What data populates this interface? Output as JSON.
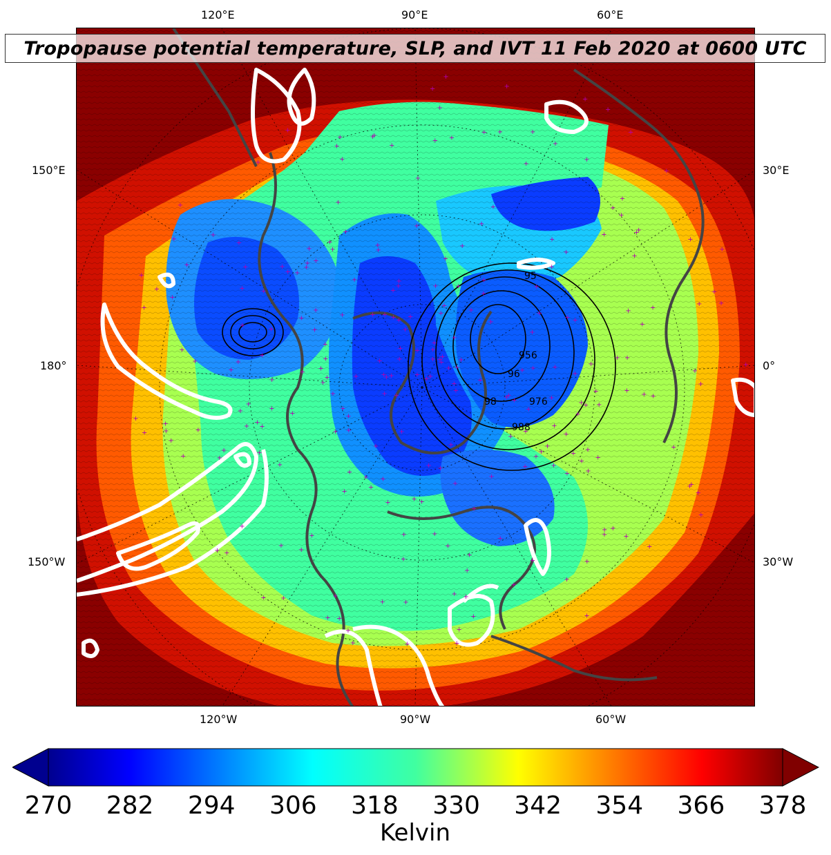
{
  "title": "Tropopause potential temperature, SLP, and IVT 11 Feb 2020 at 0600 UTC",
  "map": {
    "projection": "north-polar-stereographic",
    "lon_labels": {
      "top": [
        "120°E",
        "90°E",
        "60°E"
      ],
      "bottom": [
        "120°W",
        "90°W",
        "60°W"
      ],
      "left": [
        "150°E",
        "180°",
        "150°W"
      ],
      "right": [
        "30°E",
        "0°",
        "30°W"
      ]
    },
    "slp_contour_labels": [
      "956",
      "95",
      "96",
      "976",
      "98",
      "988"
    ],
    "colors": {
      "coastlines": "#444444",
      "ivt_contours": "#ffffff",
      "station_markers": "#b000b0",
      "slp_contours": "#000000"
    }
  },
  "colorbar": {
    "label": "Kelvin",
    "ticks": [
      "270",
      "282",
      "294",
      "306",
      "318",
      "330",
      "342",
      "354",
      "366",
      "378"
    ],
    "range": [
      270,
      378
    ],
    "colormap": "jet",
    "extend": "both"
  }
}
